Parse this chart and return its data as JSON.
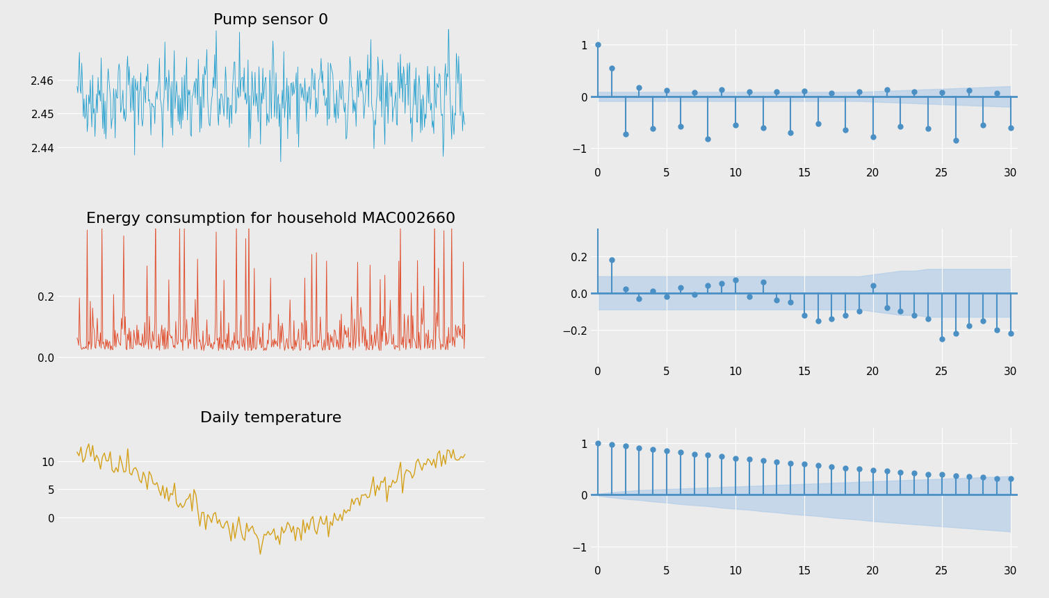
{
  "bg_color": "#ebebeb",
  "titles": [
    "Pump sensor 0",
    "Energy consumption for household MAC002660",
    "Daily temperature"
  ],
  "line_colors": [
    "#1f9dcd",
    "#e05030",
    "#d4a017"
  ],
  "acf_color": "#4a90c4",
  "acf_fill_color": "#a8c8e8",
  "n_lags": 30,
  "pump_ylim": [
    2.435,
    2.475
  ],
  "pump_yticks": [
    2.44,
    2.45,
    2.46
  ],
  "energy_ylim": [
    -0.02,
    0.42
  ],
  "energy_yticks": [
    0.0,
    0.2
  ],
  "temp_ylim": [
    -8,
    16
  ],
  "temp_yticks": [
    0,
    5,
    10
  ],
  "acf1_ylim": [
    -1.3,
    1.3
  ],
  "acf2_ylim": [
    -0.38,
    0.35
  ],
  "acf3_ylim": [
    -1.3,
    1.3
  ],
  "figsize": [
    15.09,
    8.62
  ],
  "dpi": 100,
  "acf_pump": [
    1.0,
    0.55,
    -0.72,
    0.18,
    -0.62,
    0.12,
    -0.58,
    0.08,
    -0.82,
    0.14,
    -0.55,
    0.1,
    -0.6,
    0.09,
    -0.7,
    0.11,
    -0.52,
    0.07,
    -0.65,
    0.1,
    -0.78,
    0.14,
    -0.58,
    0.09,
    -0.62,
    0.08,
    -0.85,
    0.12,
    -0.55,
    0.07,
    -0.6
  ],
  "acf_energy": [
    1.0,
    0.18,
    0.02,
    -0.03,
    0.01,
    -0.02,
    0.03,
    -0.01,
    0.04,
    0.05,
    0.07,
    -0.02,
    0.06,
    -0.04,
    -0.05,
    -0.12,
    -0.15,
    -0.14,
    -0.12,
    -0.1,
    0.04,
    -0.08,
    -0.1,
    -0.12,
    -0.14,
    -0.25,
    -0.22,
    -0.18,
    -0.15,
    -0.2,
    -0.22
  ],
  "acf_temp": [
    1.0,
    0.97,
    0.94,
    0.91,
    0.88,
    0.85,
    0.82,
    0.79,
    0.77,
    0.74,
    0.71,
    0.69,
    0.66,
    0.64,
    0.61,
    0.59,
    0.57,
    0.54,
    0.52,
    0.5,
    0.48,
    0.46,
    0.44,
    0.42,
    0.4,
    0.39,
    0.37,
    0.35,
    0.34,
    0.32,
    0.31
  ],
  "conf_pump_upper": [
    0.088,
    0.088,
    0.088,
    0.088,
    0.088,
    0.088,
    0.088,
    0.088,
    0.088,
    0.088,
    0.088,
    0.088,
    0.088,
    0.088,
    0.088,
    0.088,
    0.088,
    0.088,
    0.088,
    0.088,
    0.1,
    0.11,
    0.12,
    0.13,
    0.14,
    0.15,
    0.16,
    0.17,
    0.18,
    0.19,
    0.2
  ],
  "conf_pump_lower": [
    -0.088,
    -0.088,
    -0.088,
    -0.088,
    -0.088,
    -0.088,
    -0.088,
    -0.088,
    -0.088,
    -0.088,
    -0.088,
    -0.088,
    -0.088,
    -0.088,
    -0.088,
    -0.088,
    -0.088,
    -0.088,
    -0.088,
    -0.088,
    -0.1,
    -0.11,
    -0.12,
    -0.13,
    -0.14,
    -0.15,
    -0.16,
    -0.17,
    -0.18,
    -0.19,
    -0.2
  ],
  "conf_energy_upper": [
    0.09,
    0.09,
    0.09,
    0.09,
    0.09,
    0.09,
    0.09,
    0.09,
    0.09,
    0.09,
    0.09,
    0.09,
    0.09,
    0.09,
    0.09,
    0.09,
    0.09,
    0.09,
    0.09,
    0.09,
    0.1,
    0.11,
    0.12,
    0.12,
    0.13,
    0.13,
    0.13,
    0.13,
    0.13,
    0.13,
    0.13
  ],
  "conf_energy_lower": [
    -0.09,
    -0.09,
    -0.09,
    -0.09,
    -0.09,
    -0.09,
    -0.09,
    -0.09,
    -0.09,
    -0.09,
    -0.09,
    -0.09,
    -0.09,
    -0.09,
    -0.09,
    -0.09,
    -0.09,
    -0.09,
    -0.09,
    -0.09,
    -0.1,
    -0.11,
    -0.12,
    -0.12,
    -0.13,
    -0.13,
    -0.13,
    -0.13,
    -0.13,
    -0.13,
    -0.13
  ],
  "conf_temp_upper": [
    0.02,
    0.05,
    0.07,
    0.09,
    0.1,
    0.11,
    0.12,
    0.13,
    0.14,
    0.15,
    0.16,
    0.17,
    0.18,
    0.19,
    0.2,
    0.21,
    0.22,
    0.23,
    0.24,
    0.25,
    0.26,
    0.27,
    0.28,
    0.29,
    0.3,
    0.31,
    0.32,
    0.33,
    0.34,
    0.35,
    0.36
  ],
  "conf_temp_lower": [
    -0.02,
    -0.05,
    -0.08,
    -0.1,
    -0.13,
    -0.15,
    -0.18,
    -0.2,
    -0.22,
    -0.25,
    -0.27,
    -0.29,
    -0.32,
    -0.34,
    -0.37,
    -0.39,
    -0.41,
    -0.44,
    -0.46,
    -0.48,
    -0.51,
    -0.53,
    -0.55,
    -0.57,
    -0.59,
    -0.61,
    -0.63,
    -0.65,
    -0.67,
    -0.69,
    -0.71
  ]
}
